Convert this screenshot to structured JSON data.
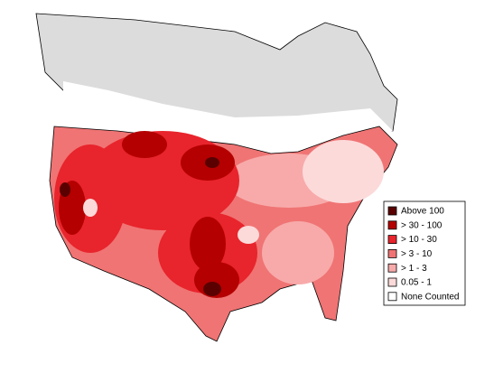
{
  "legend": {
    "items": [
      {
        "label": "Above 100",
        "color": "#5a0000"
      },
      {
        "label": "> 30 - 100",
        "color": "#b40000"
      },
      {
        "label": "> 10 - 30",
        "color": "#e8242c"
      },
      {
        "label": "> 3 - 10",
        "color": "#f07474"
      },
      {
        "label": "> 1 - 3",
        "color": "#f8aaaa"
      },
      {
        "label": "0.05 - 1",
        "color": "#fcdada"
      },
      {
        "label": "None Counted",
        "color": "#ffffff"
      }
    ]
  }
}
